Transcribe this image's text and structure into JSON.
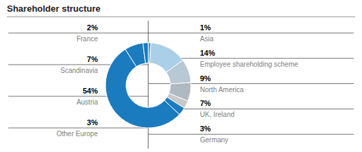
{
  "chart_data": {
    "type": "pie",
    "title": "Shareholder structure",
    "categories": [
      "Asia",
      "Employee shareholding scheme",
      "North America",
      "UK, Ireland",
      "Germany",
      "Other Europe",
      "Austria",
      "Scandinavia",
      "France"
    ],
    "values": [
      1,
      14,
      9,
      7,
      3,
      3,
      54,
      7,
      2
    ],
    "value_labels": [
      "1%",
      "14%",
      "9%",
      "7%",
      "3%",
      "3%",
      "54%",
      "7%",
      "2%"
    ],
    "colors": [
      "#2b9fd4",
      "#aacfe8",
      "#b8c8d4",
      "#b0b8c0",
      "#c8c8c8",
      "#1a7bbf",
      "#1a7bbf",
      "#1a7bbf",
      "#1a7bbf"
    ],
    "data_labels": true
  }
}
